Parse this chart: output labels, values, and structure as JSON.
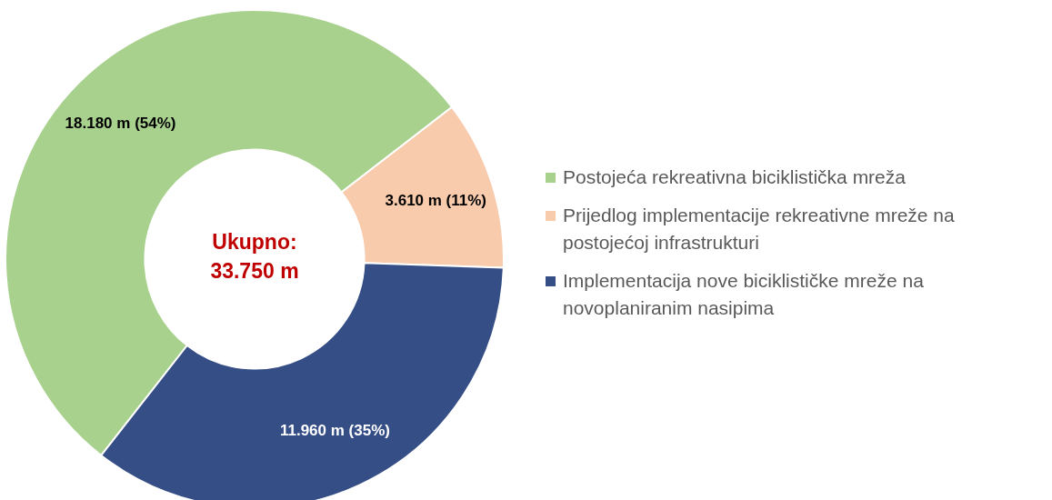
{
  "chart_data": {
    "type": "donut",
    "categories": [
      "Postojeća rekreativna biciklistička mreža",
      "Prijedlog implementacije rekreativne mreže na postojećoj infrastrukturi",
      "Implementacija nove biciklističke mreže na novoplaniranim nasipima"
    ],
    "values": [
      54,
      11,
      35
    ],
    "colors": [
      "#a9d18e",
      "#f8cbad",
      "#354e86"
    ],
    "value_labels": [
      "18.180 m (54%)",
      "3.610 m (11%)",
      "11.960 m (35%)"
    ],
    "annotations": [
      "Ukupno: 33.750 m"
    ],
    "legend": "right"
  }
}
